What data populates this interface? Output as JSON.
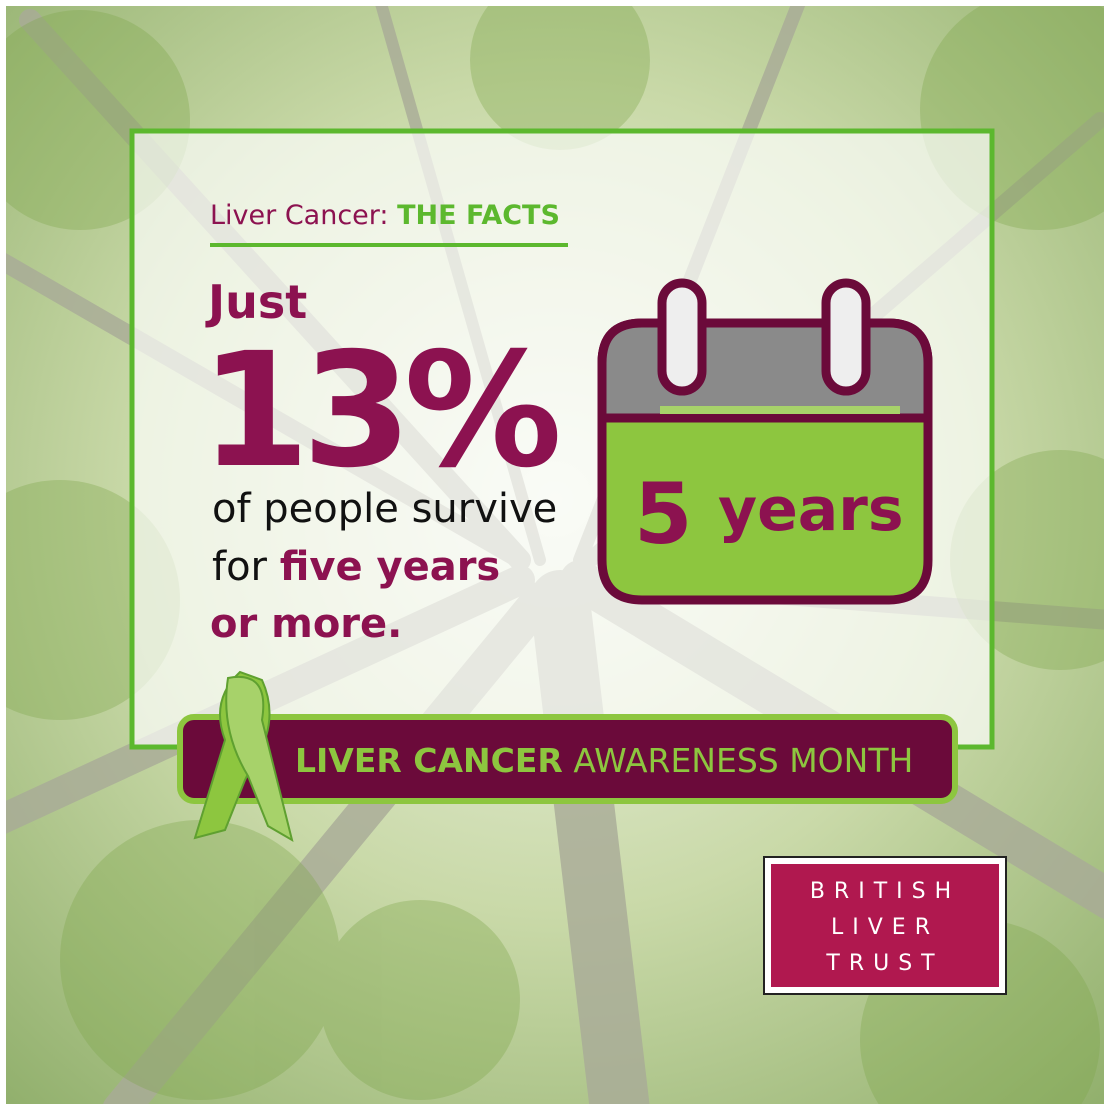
{
  "header": {
    "lead": "Liver Cancer:",
    "emphasis": "THE FACTS"
  },
  "fact": {
    "intro": "Just",
    "figure": "13%",
    "line1": "of people survive",
    "line2_plain": "for",
    "line2_bold": "five years",
    "line3": "or more."
  },
  "calendar": {
    "number": "5",
    "unit": "years"
  },
  "banner": {
    "bold": "LIVER CANCER",
    "light": "AWARENESS MONTH"
  },
  "logo": {
    "lines": [
      "BRITISH",
      "LIVER",
      "TRUST"
    ]
  }
}
